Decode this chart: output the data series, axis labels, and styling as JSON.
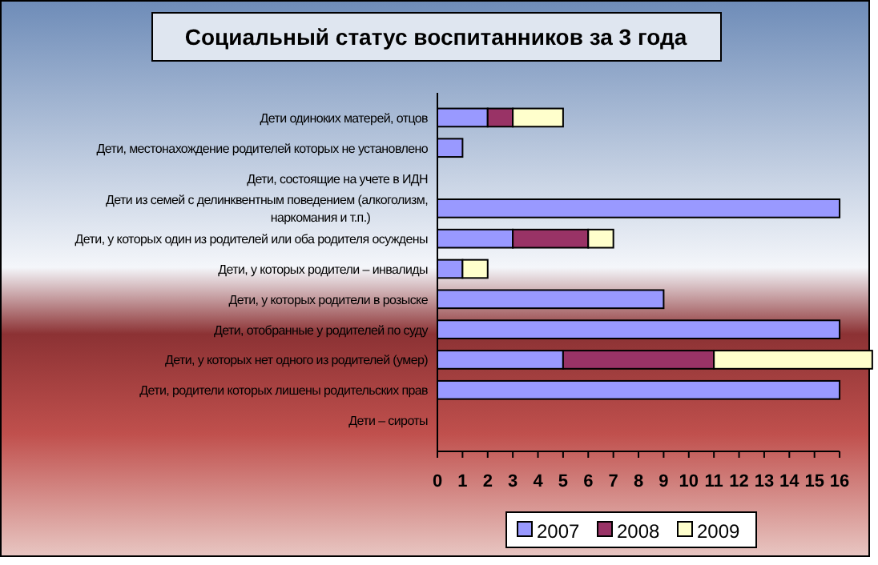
{
  "chart_data": {
    "type": "bar",
    "orientation": "horizontal",
    "stacked": true,
    "title": "Социальный статус воспитанников за 3 года",
    "categories": [
      "Дети одиноких матерей, отцов",
      "Дети, местонахождение родителей которых не установлено",
      "Дети, состоящие на учете в ИДН",
      "Дети из семей с делинквентным поведением (алкоголизм,\nнаркомания и т.п.)",
      "Дети, у которых один из родителей или оба родителя осуждены",
      "Дети, у которых родители – инвалиды",
      "Дети, у которых родители в розыске",
      "Дети, отобранные у родителей по суду",
      "Дети, у которых нет одного из родителей (умер)",
      "Дети, родители которых лишены родительских прав",
      "Дети – сироты"
    ],
    "series": [
      {
        "name": "2007",
        "color": "#9999ff",
        "values": [
          2,
          1,
          null,
          16,
          3,
          1,
          9,
          16,
          5,
          16,
          null
        ]
      },
      {
        "name": "2008",
        "color": "#993366",
        "values": [
          1,
          null,
          null,
          null,
          3,
          null,
          null,
          null,
          6,
          null,
          null
        ]
      },
      {
        "name": "2009",
        "color": "#ffffcc",
        "values": [
          2,
          null,
          null,
          null,
          1,
          1,
          null,
          null,
          6.3,
          null,
          null
        ]
      }
    ],
    "xlim": [
      0,
      17.4
    ],
    "xticks": [
      0,
      1,
      2,
      3,
      4,
      5,
      6,
      7,
      8,
      9,
      10,
      11,
      12,
      13,
      14,
      15,
      16
    ],
    "grid": false,
    "legend": "bottom"
  }
}
